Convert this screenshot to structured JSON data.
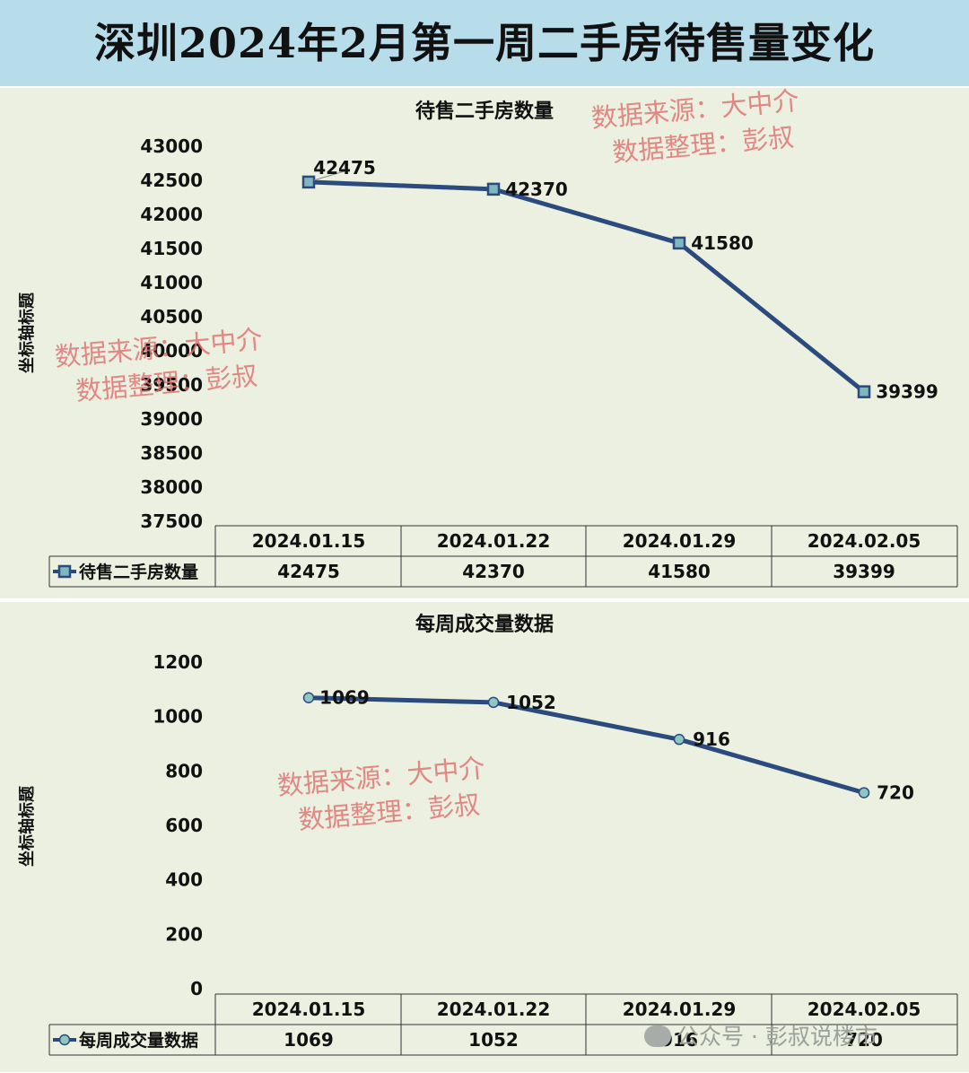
{
  "page_title": "深圳2024年2月第一周二手房待售量变化",
  "watermark": {
    "source": "数据来源：大中介",
    "organizer": "数据整理：彭叔",
    "footer": "公众号 · 彭叔说楼市"
  },
  "colors": {
    "header_bg": "#b7dcea",
    "panel_bg": "#ebf0e0",
    "line": "#2b4a7e",
    "watermark": "#e07070"
  },
  "chart_data": [
    {
      "type": "line",
      "title": "待售二手房数量",
      "ylabel": "坐标轴标题",
      "categories": [
        "2024.01.15",
        "2024.01.22",
        "2024.01.29",
        "2024.02.05"
      ],
      "series": [
        {
          "name": "待售二手房数量",
          "values": [
            42475,
            42370,
            41580,
            39399
          ]
        }
      ],
      "ylim": [
        37500,
        43000
      ],
      "yticks": [
        43000,
        42500,
        42000,
        41500,
        41000,
        40500,
        40000,
        39500,
        39000,
        38500,
        38000,
        37500
      ],
      "marker": "square",
      "data_table": true,
      "grid": false
    },
    {
      "type": "line",
      "title": "每周成交量数据",
      "ylabel": "坐标轴标题",
      "categories": [
        "2024.01.15",
        "2024.01.22",
        "2024.01.29",
        "2024.02.05"
      ],
      "series": [
        {
          "name": "每周成交量数据",
          "values": [
            1069,
            1052,
            916,
            720
          ]
        }
      ],
      "ylim": [
        0,
        1200
      ],
      "yticks": [
        1200,
        1000,
        800,
        600,
        400,
        200,
        0
      ],
      "marker": "circle",
      "data_table": true,
      "grid": false
    }
  ]
}
